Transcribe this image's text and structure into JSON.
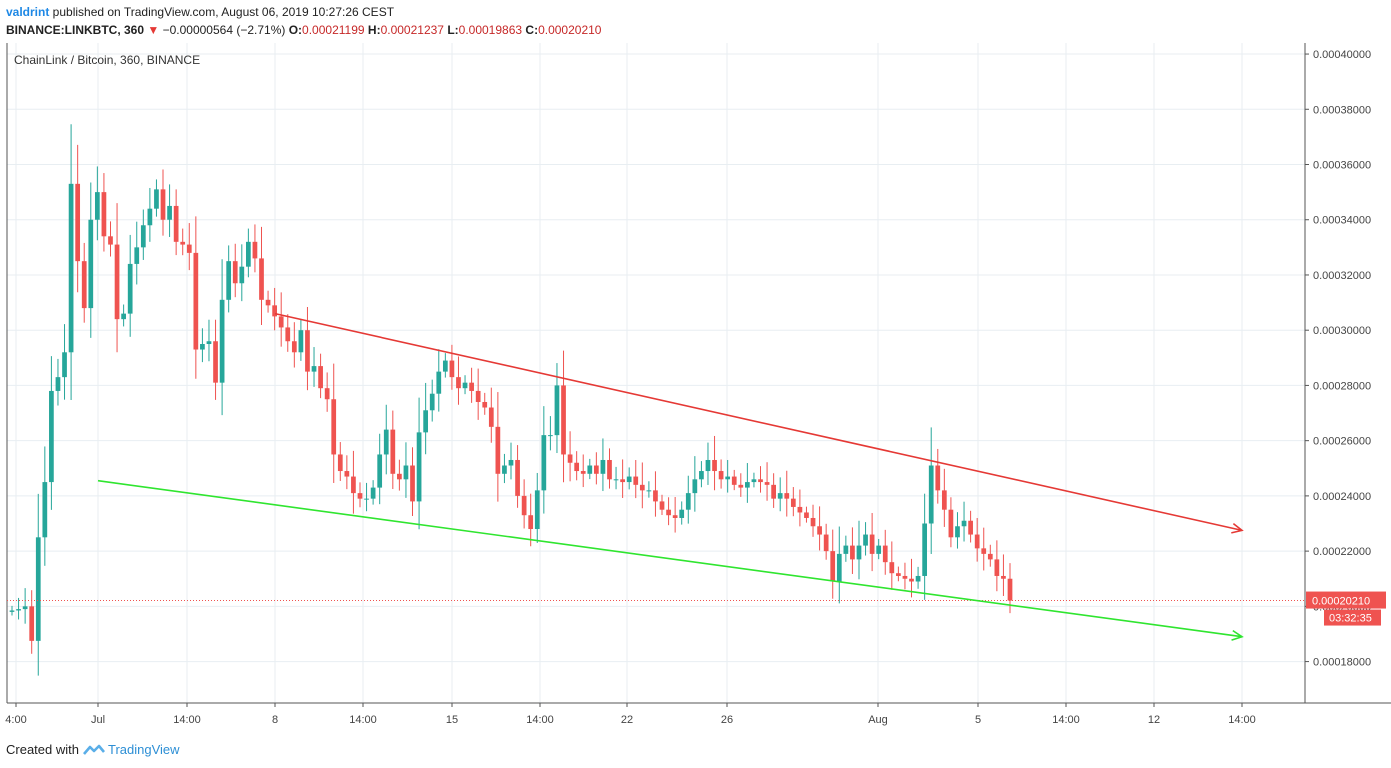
{
  "header": {
    "user": "valdrint",
    "published_text": " published on TradingView.com, August 06, 2019 10:27:26 CEST",
    "symbol": "BINANCE:LINKBTC, 360",
    "change": "−0.00000564 (−2.71%)",
    "o_label": "O:",
    "o_value": "0.00021199",
    "h_label": "H:",
    "h_value": "0.00021237",
    "l_label": "L:",
    "l_value": "0.00019863",
    "c_label": "C:",
    "c_value": "0.00020210"
  },
  "legend_title": "ChainLink / Bitcoin, 360, BINANCE",
  "footer": {
    "created_with": "Created with",
    "brand": "TradingView"
  },
  "colors": {
    "up": "#26a69a",
    "down": "#ef5350",
    "grid": "#e8eef2",
    "resistance": "#e53935",
    "support": "#2fe52f",
    "price_line": "#ef5350"
  },
  "chart_data": {
    "type": "candlestick",
    "title": "ChainLink / Bitcoin, 360, BINANCE",
    "ylim": [
      0.000165,
      0.000404
    ],
    "y_ticks": [
      "0.00018000",
      "0.00020000",
      "0.00022000",
      "0.00024000",
      "0.00026000",
      "0.00028000",
      "0.00030000",
      "0.00032000",
      "0.00034000",
      "0.00036000",
      "0.00038000",
      "0.00040000"
    ],
    "x_ticks": [
      "4:00",
      "Jul",
      "14:00",
      "8",
      "14:00",
      "15",
      "14:00",
      "22",
      "26",
      "Aug",
      "5",
      "14:00",
      "12",
      "14:00"
    ],
    "last_price_label": "0.00020210",
    "countdown_label": "03:32:35",
    "last_price": 0.0002021,
    "close_series": [
      0.0001985,
      0.000199,
      0.0002,
      0.0001875,
      0.000225,
      0.000245,
      0.000278,
      0.000283,
      0.000292,
      0.000353,
      0.000325,
      0.000308,
      0.00034,
      0.00035,
      0.000334,
      0.000331,
      0.000304,
      0.000306,
      0.000324,
      0.00033,
      0.000338,
      0.000344,
      0.000351,
      0.00034,
      0.000345,
      0.000332,
      0.000331,
      0.000328,
      0.000293,
      0.000295,
      0.000296,
      0.000281,
      0.000311,
      0.000325,
      0.000317,
      0.000323,
      0.000332,
      0.000326,
      0.000311,
      0.000309,
      0.000305,
      0.000301,
      0.000296,
      0.000292,
      0.0003,
      0.000285,
      0.000287,
      0.000279,
      0.000275,
      0.000255,
      0.000249,
      0.000247,
      0.000241,
      0.000239,
      0.000239,
      0.000243,
      0.000255,
      0.000264,
      0.000248,
      0.000246,
      0.000251,
      0.000238,
      0.000263,
      0.000271,
      0.000277,
      0.000285,
      0.000289,
      0.000283,
      0.000279,
      0.000281,
      0.000278,
      0.000274,
      0.000272,
      0.000265,
      0.000248,
      0.000251,
      0.000253,
      0.00024,
      0.000233,
      0.000228,
      0.000242,
      0.000262,
      0.000262,
      0.00028,
      0.000255,
      0.000252,
      0.000249,
      0.000248,
      0.000251,
      0.000248,
      0.000253,
      0.000246,
      0.000246,
      0.000245,
      0.000247,
      0.000244,
      0.000242,
      0.000242,
      0.000238,
      0.000235,
      0.000233,
      0.000232,
      0.000235,
      0.000241,
      0.000246,
      0.000249,
      0.000253,
      0.000249,
      0.000246,
      0.000247,
      0.000244,
      0.000243,
      0.000245,
      0.000246,
      0.000245,
      0.000244,
      0.000239,
      0.000241,
      0.000239,
      0.000236,
      0.000234,
      0.000232,
      0.000229,
      0.000226,
      0.00022,
      0.000209,
      0.000219,
      0.000222,
      0.000217,
      0.000222,
      0.000226,
      0.000219,
      0.000222,
      0.000216,
      0.000212,
      0.000211,
      0.00021,
      0.000209,
      0.000211,
      0.00023,
      0.000251,
      0.000242,
      0.000235,
      0.000225,
      0.000229,
      0.000231,
      0.000226,
      0.000221,
      0.000219,
      0.000217,
      0.000211,
      0.00021,
      0.0002021
    ],
    "trendlines": [
      {
        "name": "resistance",
        "from": [
          "8",
          0.000306
        ],
        "to": [
          "14:00",
          0.0002275
        ]
      },
      {
        "name": "support",
        "from": [
          "Jul",
          0.0002455
        ],
        "to": [
          "14:00",
          0.000189
        ]
      }
    ]
  }
}
